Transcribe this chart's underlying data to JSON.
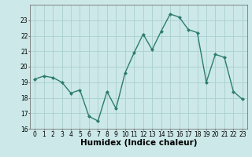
{
  "x": [
    0,
    1,
    2,
    3,
    4,
    5,
    6,
    7,
    8,
    9,
    10,
    11,
    12,
    13,
    14,
    15,
    16,
    17,
    18,
    19,
    20,
    21,
    22,
    23
  ],
  "y": [
    19.2,
    19.4,
    19.3,
    19.0,
    18.3,
    18.5,
    16.8,
    16.5,
    18.4,
    17.3,
    19.6,
    20.9,
    22.1,
    21.1,
    22.3,
    23.4,
    23.2,
    22.4,
    22.2,
    19.0,
    20.8,
    20.6,
    18.4,
    17.9
  ],
  "line_color": "#2d7d6e",
  "marker": "D",
  "marker_size": 2.0,
  "bg_color": "#cce8e8",
  "grid_color": "#aacfcf",
  "xlabel": "Humidex (Indice chaleur)",
  "ylim": [
    16,
    24
  ],
  "xlim": [
    -0.5,
    23.5
  ],
  "yticks": [
    16,
    17,
    18,
    19,
    20,
    21,
    22,
    23
  ],
  "xticks": [
    0,
    1,
    2,
    3,
    4,
    5,
    6,
    7,
    8,
    9,
    10,
    11,
    12,
    13,
    14,
    15,
    16,
    17,
    18,
    19,
    20,
    21,
    22,
    23
  ],
  "tick_fontsize": 5.5,
  "xlabel_fontsize": 7.5
}
